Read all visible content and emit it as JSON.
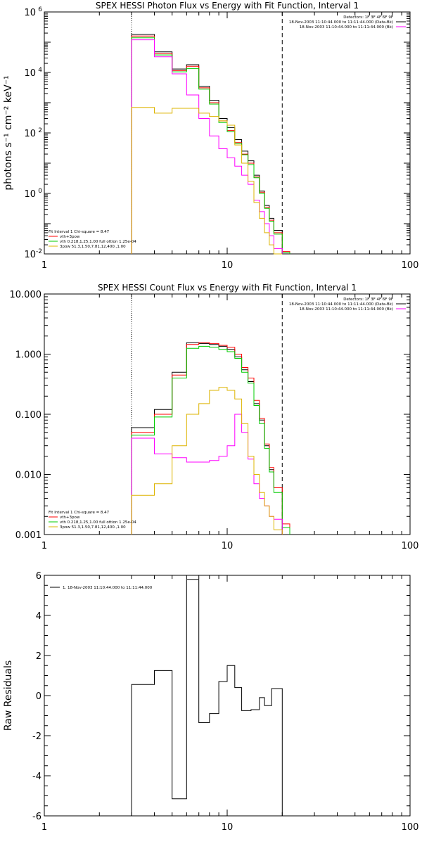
{
  "chart_data": [
    {
      "type": "line",
      "title": "SPEX HESSI Photon Flux vs Energy with Fit Function, Interval 1",
      "ylabel": "photons s⁻¹ cm⁻² keV⁻¹",
      "xlabel": "",
      "xscale": "log",
      "yscale": "log",
      "xlim": [
        1,
        100
      ],
      "ylim": [
        0.01,
        1000000
      ],
      "xticklabels": [
        "1",
        "10",
        "100"
      ],
      "yticks": [
        {
          "value": 0.01,
          "label": "10",
          "exp": "-2"
        },
        {
          "value": 1,
          "label": "10",
          "exp": "0"
        },
        {
          "value": 100,
          "label": "10",
          "exp": "2"
        },
        {
          "value": 10000,
          "label": "10",
          "exp": "4"
        },
        {
          "value": 1000000,
          "label": "10",
          "exp": "6"
        }
      ],
      "vlines": [
        {
          "x": 3.0,
          "style": "dotted"
        },
        {
          "x": 20.0,
          "style": "dashed"
        }
      ],
      "legend_top": [
        {
          "text": "Detectors: 1F 3F 4F 6F 9F",
          "color": ""
        },
        {
          "text": "18-Nov-2003 11:10:44.000 to 11:11:44.000 (Data-Bk)",
          "color": "#000000"
        },
        {
          "text": "18-Nov-2003 11:10:44.000 to 11:11:44.000 (Bk)",
          "color": "#ff00ff"
        }
      ],
      "legend_bottom": [
        {
          "text": "Fit Interval 1    Chi-square = 8.47",
          "color": ""
        },
        {
          "text": "vth+3pow",
          "color": "#ff0000"
        },
        {
          "text": "vth 0.218,1.25,1.00  full ottion 1.25e-04",
          "color": "#00cc00"
        },
        {
          "text": "3pow 51.3,1.50,7.81,12,400.,1.00",
          "color": "#ddb400"
        }
      ],
      "bin_edges": [
        3.0,
        4.0,
        5.0,
        6.0,
        7.0,
        8.0,
        9.0,
        10.0,
        11.0,
        12.0,
        13.0,
        14.0,
        15.0,
        16.0,
        17.0,
        18.0,
        20.0,
        22.0
      ],
      "series": [
        {
          "color": "#000000",
          "values": [
            180000,
            48000,
            13000,
            18000,
            3500,
            1200,
            300,
            150,
            60,
            25,
            12,
            4,
            1.2,
            0.4,
            0.15,
            0.06,
            null
          ]
        },
        {
          "color": "#ff0000",
          "values": [
            160000,
            42000,
            11500,
            16000,
            3100,
            1000,
            250,
            120,
            48,
            20,
            10,
            3.5,
            1.1,
            0.35,
            0.13,
            0.05,
            0.012
          ]
        },
        {
          "color": "#00cc00",
          "values": [
            140000,
            38000,
            10500,
            13500,
            2800,
            900,
            220,
            110,
            45,
            19,
            9,
            3.3,
            1.0,
            0.32,
            0.12,
            0.045,
            0.011
          ]
        },
        {
          "color": "#ff00ff",
          "values": [
            120000,
            33000,
            9000,
            1800,
            300,
            80,
            30,
            15,
            8,
            4,
            2,
            0.6,
            0.25,
            0.1,
            0.04,
            0.015,
            null
          ]
        },
        {
          "color": "#ddb400",
          "values": [
            700,
            450,
            650,
            650,
            450,
            350,
            250,
            180,
            40,
            10,
            2.5,
            0.5,
            0.15,
            0.05,
            0.02,
            0.01,
            null
          ]
        }
      ]
    },
    {
      "type": "line",
      "title": "SPEX HESSI Count Flux vs Energy with Fit Function, Interval 1",
      "ylabel": "",
      "xlabel": "",
      "xscale": "log",
      "yscale": "log",
      "xlim": [
        1,
        100
      ],
      "ylim": [
        0.001,
        10
      ],
      "xticklabels": [
        "1",
        "10",
        "100"
      ],
      "yticks": [
        {
          "value": 0.001,
          "label": "0.001",
          "exp": ""
        },
        {
          "value": 0.01,
          "label": "0.010",
          "exp": ""
        },
        {
          "value": 0.1,
          "label": "0.100",
          "exp": ""
        },
        {
          "value": 1,
          "label": "1.000",
          "exp": ""
        },
        {
          "value": 10,
          "label": "10.000",
          "exp": ""
        }
      ],
      "vlines": [
        {
          "x": 3.0,
          "style": "dotted"
        },
        {
          "x": 20.0,
          "style": "dashed"
        }
      ],
      "legend_top": [
        {
          "text": "Detectors: 1F 3F 4F 6F 9F",
          "color": ""
        },
        {
          "text": "18-Nov-2003 11:10:44.000 to 11:11:44.000 (Data-Bk)",
          "color": "#000000"
        },
        {
          "text": "18-Nov-2003 11:10:44.000 to 11:11:44.000 (Bk)",
          "color": "#ff00ff"
        }
      ],
      "legend_bottom": [
        {
          "text": "Fit Interval 1    Chi-square = 8.47",
          "color": ""
        },
        {
          "text": "vth+3pow",
          "color": "#ff0000"
        },
        {
          "text": "vth 0.218,1.25,1.00  full ottion 1.25e-04",
          "color": "#00cc00"
        },
        {
          "text": "3pow 51.3,1.50,7.81,12,400.,1.00",
          "color": "#ddb400"
        }
      ],
      "bin_edges": [
        3.0,
        4.0,
        5.0,
        6.0,
        7.0,
        8.0,
        9.0,
        10.0,
        11.0,
        12.0,
        13.0,
        14.0,
        15.0,
        16.0,
        17.0,
        18.0,
        20.0,
        22.0
      ],
      "series": [
        {
          "color": "#000000",
          "values": [
            0.06,
            0.12,
            0.5,
            1.55,
            1.5,
            1.45,
            1.35,
            1.2,
            0.9,
            0.55,
            0.35,
            0.15,
            0.08,
            0.03,
            0.012,
            0.006,
            null
          ]
        },
        {
          "color": "#ff0000",
          "values": [
            0.05,
            0.1,
            0.45,
            1.45,
            1.55,
            1.5,
            1.4,
            1.3,
            1.0,
            0.6,
            0.4,
            0.17,
            0.085,
            0.032,
            0.013,
            0.006,
            0.0015
          ]
        },
        {
          "color": "#00cc00",
          "values": [
            0.045,
            0.09,
            0.4,
            1.25,
            1.35,
            1.3,
            1.2,
            1.1,
            0.85,
            0.5,
            0.33,
            0.14,
            0.07,
            0.027,
            0.011,
            0.005,
            0.0013
          ]
        },
        {
          "color": "#ff00ff",
          "values": [
            0.04,
            0.022,
            0.019,
            0.016,
            0.016,
            0.017,
            0.02,
            0.03,
            0.1,
            0.05,
            0.018,
            0.007,
            0.004,
            0.003,
            0.002,
            0.0018,
            null
          ]
        },
        {
          "color": "#ddb400",
          "values": [
            0.0045,
            0.007,
            0.03,
            0.1,
            0.15,
            0.25,
            0.28,
            0.25,
            0.18,
            0.07,
            0.02,
            0.01,
            0.005,
            0.003,
            0.002,
            0.0012,
            null
          ]
        }
      ]
    },
    {
      "type": "line",
      "title": "",
      "ylabel": "Raw Residuals",
      "xlabel": "",
      "xscale": "log",
      "yscale": "linear",
      "xlim": [
        1,
        100
      ],
      "ylim": [
        -6,
        6
      ],
      "xticklabels": [
        "1",
        "10",
        "100"
      ],
      "yticks": [
        {
          "value": -6,
          "label": "-6",
          "exp": ""
        },
        {
          "value": -4,
          "label": "-4",
          "exp": ""
        },
        {
          "value": -2,
          "label": "-2",
          "exp": ""
        },
        {
          "value": 0,
          "label": "0",
          "exp": ""
        },
        {
          "value": 2,
          "label": "2",
          "exp": ""
        },
        {
          "value": 4,
          "label": "4",
          "exp": ""
        },
        {
          "value": 6,
          "label": "6",
          "exp": ""
        }
      ],
      "vlines": [],
      "legend_top": [
        {
          "text": "1. 18-Nov-2003 11:10:44.000 to 11:11:44.000",
          "color": "#000000"
        }
      ],
      "legend_bottom": [],
      "bin_edges": [
        3.0,
        4.0,
        5.0,
        6.0,
        7.0,
        8.0,
        9.0,
        10.0,
        11.0,
        12.0,
        13.0,
        14.0,
        15.0,
        16.0,
        17.0,
        18.0,
        20.0
      ],
      "series": [
        {
          "color": "#000000",
          "values": [
            0.55,
            1.25,
            -5.15,
            5.8,
            -1.35,
            -0.9,
            0.7,
            1.5,
            0.4,
            -0.75,
            -0.7,
            -0.1,
            -0.5,
            0.35
          ]
        }
      ],
      "residual_edges": [
        3.0,
        4.0,
        5.0,
        6.0,
        7.0,
        8.0,
        9.0,
        10.0,
        11.0,
        12.0,
        13.5,
        15.0,
        16.0,
        17.5,
        20.0
      ]
    }
  ]
}
